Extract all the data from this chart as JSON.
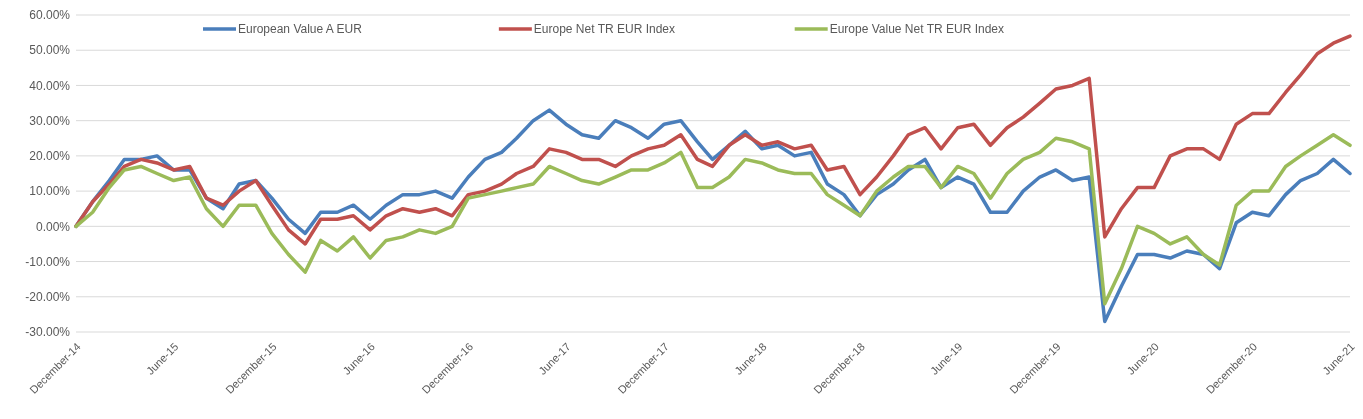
{
  "chart_data": {
    "type": "line",
    "legend": "top",
    "grid": "y",
    "line_style": "solid",
    "marker": "none",
    "x": [
      "2014-12",
      "2015-01",
      "2015-02",
      "2015-03",
      "2015-04",
      "2015-05",
      "2015-06",
      "2015-07",
      "2015-08",
      "2015-09",
      "2015-10",
      "2015-11",
      "2015-12",
      "2016-01",
      "2016-02",
      "2016-03",
      "2016-04",
      "2016-05",
      "2016-06",
      "2016-07",
      "2016-08",
      "2016-09",
      "2016-10",
      "2016-11",
      "2016-12",
      "2017-01",
      "2017-02",
      "2017-03",
      "2017-04",
      "2017-05",
      "2017-06",
      "2017-07",
      "2017-08",
      "2017-09",
      "2017-10",
      "2017-11",
      "2017-12",
      "2018-01",
      "2018-02",
      "2018-03",
      "2018-04",
      "2018-05",
      "2018-06",
      "2018-07",
      "2018-08",
      "2018-09",
      "2018-10",
      "2018-11",
      "2018-12",
      "2019-01",
      "2019-02",
      "2019-03",
      "2019-04",
      "2019-05",
      "2019-06",
      "2019-07",
      "2019-08",
      "2019-09",
      "2019-10",
      "2019-11",
      "2019-12",
      "2020-01",
      "2020-02",
      "2020-03",
      "2020-04",
      "2020-05",
      "2020-06",
      "2020-07",
      "2020-08",
      "2020-09",
      "2020-10",
      "2020-11",
      "2020-12",
      "2021-01",
      "2021-02",
      "2021-03",
      "2021-04",
      "2021-05",
      "2021-06"
    ],
    "series": [
      {
        "name": "European Value A EUR",
        "color": "#4a7ebb",
        "values": [
          0,
          7,
          13,
          19,
          19,
          20,
          16,
          16,
          8,
          5,
          12,
          13,
          8,
          2,
          -2,
          4,
          4,
          6,
          2,
          6,
          9,
          9,
          10,
          8,
          14,
          19,
          21,
          25,
          30,
          33,
          29,
          26,
          25,
          30,
          28,
          25,
          29,
          30,
          24,
          19,
          23,
          27,
          22,
          23,
          20,
          21,
          12,
          9,
          3,
          9,
          12,
          16,
          19,
          11,
          14,
          12,
          4,
          4,
          10,
          14,
          16,
          13,
          14,
          -27,
          -17,
          -8,
          -8,
          -9,
          -7,
          -8,
          -12,
          1,
          4,
          3,
          9,
          13,
          15,
          19,
          15
        ]
      },
      {
        "name": "Europe Net TR EUR Index",
        "color": "#c0504d",
        "values": [
          0,
          7,
          12,
          17,
          19,
          18,
          16,
          17,
          8,
          6,
          10,
          13,
          6,
          -1,
          -5,
          2,
          2,
          3,
          -1,
          3,
          5,
          4,
          5,
          3,
          9,
          10,
          12,
          15,
          17,
          22,
          21,
          19,
          19,
          17,
          20,
          22,
          23,
          26,
          19,
          17,
          23,
          26,
          23,
          24,
          22,
          23,
          16,
          17,
          9,
          14,
          20,
          26,
          28,
          22,
          28,
          29,
          23,
          28,
          31,
          35,
          39,
          40,
          42,
          -3,
          5,
          11,
          11,
          20,
          22,
          22,
          19,
          29,
          32,
          32,
          38,
          43,
          49,
          52,
          54
        ]
      },
      {
        "name": "Europe Value Net TR EUR Index",
        "color": "#9bbb59",
        "values": [
          0,
          4,
          11,
          16,
          17,
          15,
          13,
          14,
          5,
          0,
          6,
          6,
          -2,
          -8,
          -13,
          -4,
          -7,
          -3,
          -9,
          -4,
          -3,
          -1,
          -2,
          0,
          8,
          9,
          10,
          11,
          12,
          17,
          15,
          13,
          12,
          14,
          16,
          16,
          18,
          21,
          11,
          11,
          14,
          19,
          18,
          16,
          15,
          15,
          9,
          6,
          3,
          10,
          14,
          17,
          17,
          11,
          17,
          15,
          8,
          15,
          19,
          21,
          25,
          24,
          22,
          -22,
          -12,
          0,
          -2,
          -5,
          -3,
          -8,
          -11,
          6,
          10,
          10,
          17,
          20,
          23,
          26,
          23
        ]
      }
    ],
    "xlim": [
      "2014-12",
      "2021-06"
    ],
    "xticks": [
      {
        "value": "2014-12",
        "label": "December-14"
      },
      {
        "value": "2015-06",
        "label": "June-15"
      },
      {
        "value": "2015-12",
        "label": "December-15"
      },
      {
        "value": "2016-06",
        "label": "June-16"
      },
      {
        "value": "2016-12",
        "label": "December-16"
      },
      {
        "value": "2017-06",
        "label": "June-17"
      },
      {
        "value": "2017-12",
        "label": "December-17"
      },
      {
        "value": "2018-06",
        "label": "June-18"
      },
      {
        "value": "2018-12",
        "label": "December-18"
      },
      {
        "value": "2019-06",
        "label": "June-19"
      },
      {
        "value": "2019-12",
        "label": "December-19"
      },
      {
        "value": "2020-06",
        "label": "June-20"
      },
      {
        "value": "2020-12",
        "label": "December-20"
      },
      {
        "value": "2021-06",
        "label": "June-21"
      }
    ],
    "ylim": [
      -30,
      60
    ],
    "yticks": [
      {
        "value": -30,
        "label": "-30.00%"
      },
      {
        "value": -20,
        "label": "-20.00%"
      },
      {
        "value": -10,
        "label": "-10.00%"
      },
      {
        "value": 0,
        "label": "0.00%"
      },
      {
        "value": 10,
        "label": "10.00%"
      },
      {
        "value": 20,
        "label": "20.00%"
      },
      {
        "value": 30,
        "label": "30.00%"
      },
      {
        "value": 40,
        "label": "40.00%"
      },
      {
        "value": 50,
        "label": "50.00%"
      },
      {
        "value": 60,
        "label": "60.00%"
      }
    ]
  }
}
